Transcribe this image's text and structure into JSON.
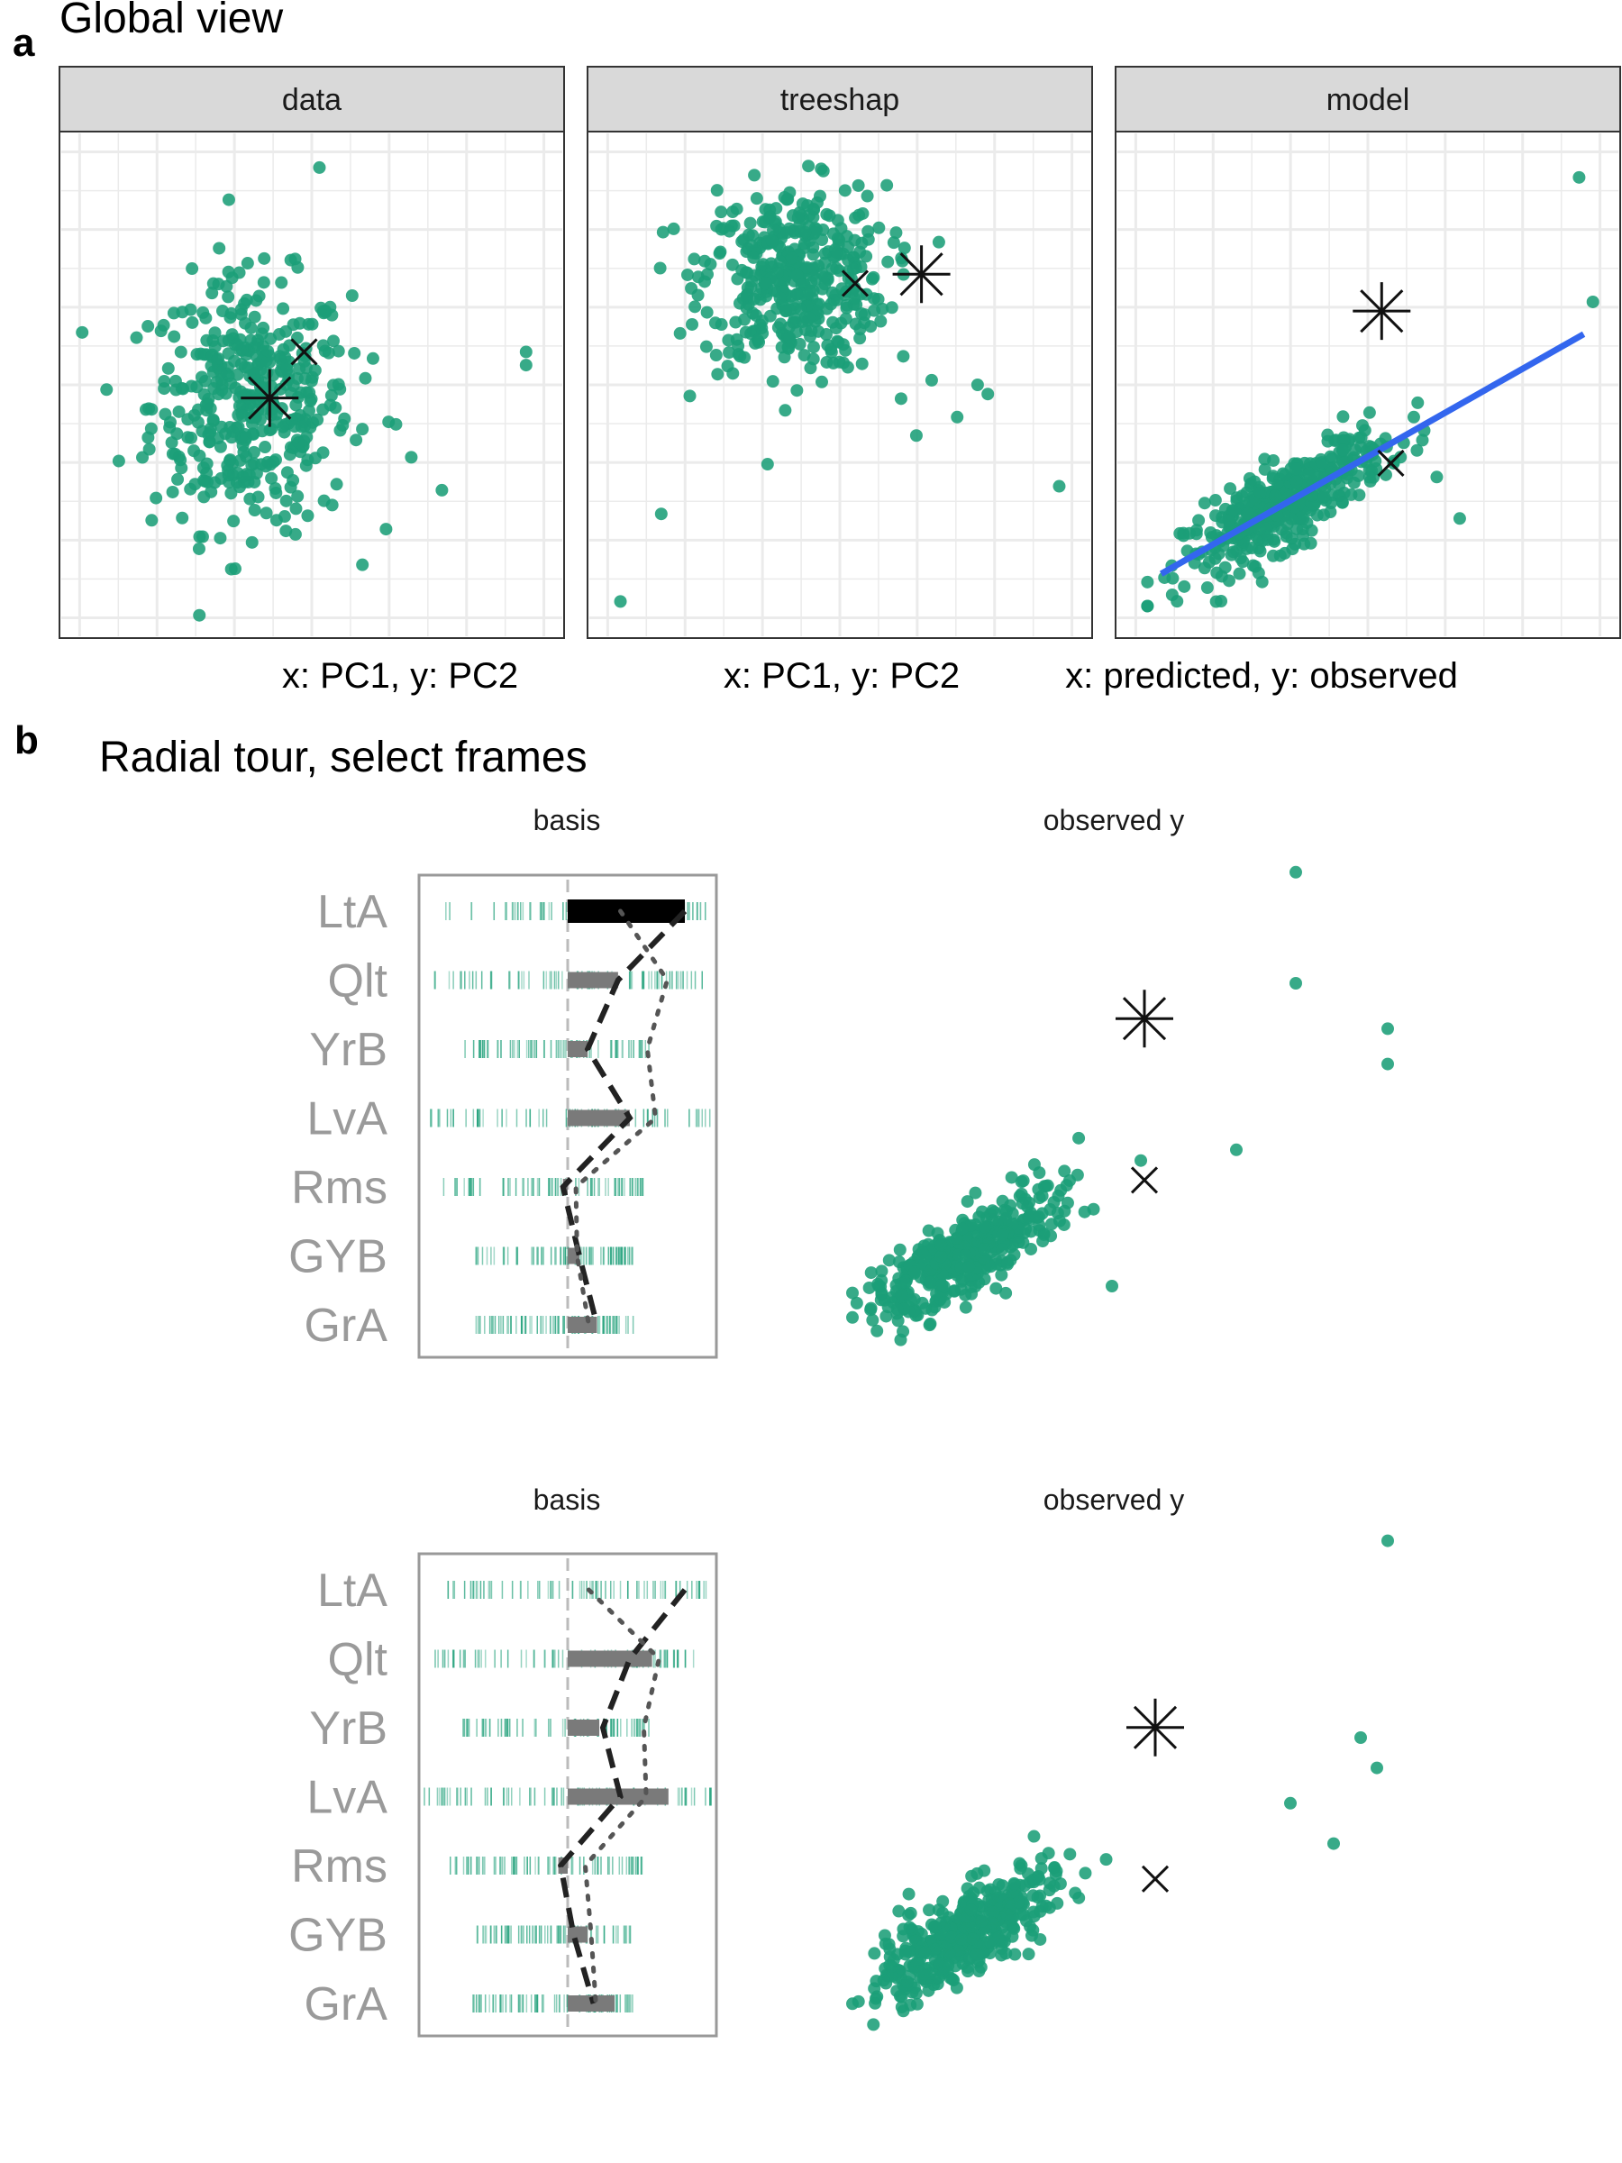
{
  "colors": {
    "point": "#1b9e77",
    "fit_line": "#3366ee",
    "marker": "#111111",
    "strip_bg": "#d9d9d9",
    "grid": "#ebebeb",
    "var_label": "#9a9a9a",
    "contrib_bar": "#7a7a7a",
    "contrib_bar_active": "#000000"
  },
  "figure": {
    "panel_a": {
      "label": "a",
      "title": "Global view",
      "facets": [
        {
          "strip": "data",
          "caption": "x: PC1, y: PC2",
          "x_range": [
            -4,
            8
          ],
          "y_range": [
            -3.2,
            3.8
          ]
        },
        {
          "strip": "treeshap",
          "caption": "x: PC1, y: PC2",
          "x_range": [
            -3,
            6
          ],
          "y_range": [
            -6,
            4
          ]
        },
        {
          "strip": "model",
          "caption": "x: predicted, y: observed",
          "x_range": [
            0,
            1
          ],
          "y_range": [
            0,
            1
          ]
        }
      ]
    },
    "panel_b": {
      "label": "b",
      "title": "Radial tour, select frames",
      "frames": [
        {
          "basis_title": "basis",
          "scatter_title": "observed y"
        },
        {
          "basis_title": "basis",
          "scatter_title": "observed y"
        }
      ],
      "variables": [
        "LtA",
        "Qlt",
        "YrB",
        "LvA",
        "Rms",
        "GYB",
        "GrA"
      ]
    }
  },
  "chart_data": [
    {
      "type": "scatter",
      "facet": "data",
      "x_range": [
        -4,
        8
      ],
      "y_range": [
        -3.2,
        3.8
      ],
      "grid": true,
      "n_points": 420,
      "center": [
        0.4,
        0.0
      ],
      "spread": [
        1.3,
        0.95
      ],
      "outliers": [
        [
          2.2,
          3.6
        ],
        [
          7.6,
          0.8
        ],
        [
          7.6,
          0.6
        ],
        [
          5.4,
          -1.3
        ],
        [
          4.6,
          -0.8
        ],
        [
          3.6,
          0.7
        ],
        [
          3.4,
          0.4
        ],
        [
          4.2,
          -0.3
        ]
      ],
      "highlight": {
        "x_mark": [
          1.8,
          0.8
        ],
        "star_mark": [
          0.9,
          0.1
        ]
      }
    },
    {
      "type": "scatter",
      "facet": "treeshap",
      "x_range": [
        -3,
        6
      ],
      "y_range": [
        -6,
        4
      ],
      "grid": true,
      "n_points": 420,
      "center": [
        0.6,
        1.3
      ],
      "spread": [
        0.9,
        1.0
      ],
      "outliers": [
        [
          -2.0,
          -3.8
        ],
        [
          -2.8,
          -5.7
        ],
        [
          5.8,
          -3.2
        ],
        [
          3.3,
          -0.9
        ],
        [
          4.2,
          -1.0
        ],
        [
          4.4,
          -1.2
        ],
        [
          3.8,
          -1.7
        ],
        [
          2.7,
          -1.3
        ],
        [
          3.0,
          -2.1
        ]
      ],
      "highlight": {
        "x_mark": [
          1.8,
          1.2
        ],
        "star_mark": [
          3.1,
          1.4
        ]
      }
    },
    {
      "type": "scatter",
      "facet": "model",
      "x_range": [
        0,
        1
      ],
      "y_range": [
        0,
        1
      ],
      "grid": true,
      "n_points": 420,
      "trend": {
        "slope": 0.95,
        "intercept": 0.0
      },
      "fit_line": {
        "x": [
          0.05,
          0.97
        ],
        "y": [
          0.09,
          0.61
        ]
      },
      "outliers": [
        [
          0.96,
          0.95
        ],
        [
          0.99,
          0.68
        ],
        [
          0.6,
          0.43
        ],
        [
          0.65,
          0.3
        ],
        [
          0.7,
          0.21
        ]
      ],
      "highlight": {
        "x_mark": [
          0.55,
          0.33
        ],
        "star_mark": [
          0.53,
          0.66
        ]
      }
    },
    {
      "type": "bar",
      "frame": 1,
      "panel": "basis",
      "variables": [
        "LtA",
        "Qlt",
        "YrB",
        "LvA",
        "Rms",
        "GYB",
        "GrA"
      ],
      "values": [
        1.0,
        0.43,
        0.17,
        0.53,
        -0.04,
        0.1,
        0.25
      ],
      "active_variable": "LtA",
      "x_range": [
        -1.25,
        1.25
      ],
      "overlays": {
        "dashed": [
          1.0,
          0.43,
          0.17,
          0.53,
          -0.04,
          0.1,
          0.25
        ],
        "dotted": [
          0.45,
          0.85,
          0.68,
          0.75,
          0.07,
          0.08,
          0.18
        ]
      },
      "rug": [
        {
          "min": -1.05,
          "max": 1.2
        },
        {
          "min": -1.15,
          "max": 1.2
        },
        {
          "min": -0.9,
          "max": 0.7
        },
        {
          "min": -1.25,
          "max": 1.25
        },
        {
          "min": -1.05,
          "max": 0.65
        },
        {
          "min": -0.8,
          "max": 0.55
        },
        {
          "min": -0.8,
          "max": 0.6
        }
      ]
    },
    {
      "type": "scatter",
      "frame": 1,
      "panel": "observed y",
      "x_range": [
        0,
        1
      ],
      "y_range": [
        0,
        1
      ],
      "grid": false,
      "n_points": 420,
      "outliers": [
        [
          0.83,
          0.97
        ],
        [
          0.83,
          0.75
        ],
        [
          1.0,
          0.66
        ],
        [
          1.0,
          0.59
        ],
        [
          0.72,
          0.42
        ],
        [
          0.49,
          0.15
        ]
      ],
      "highlight": {
        "x_mark": [
          0.55,
          0.36
        ],
        "star_mark": [
          0.55,
          0.68
        ]
      }
    },
    {
      "type": "bar",
      "frame": 2,
      "panel": "basis",
      "variables": [
        "LtA",
        "Qlt",
        "YrB",
        "LvA",
        "Rms",
        "GYB",
        "GrA"
      ],
      "values": [
        0.0,
        0.72,
        0.27,
        0.86,
        -0.08,
        0.17,
        0.4
      ],
      "active_variable": null,
      "x_range": [
        -1.25,
        1.25
      ],
      "overlays": {
        "dashed": [
          1.0,
          0.53,
          0.3,
          0.45,
          -0.06,
          0.05,
          0.22
        ],
        "dotted": [
          0.18,
          0.78,
          0.65,
          0.67,
          0.15,
          0.2,
          0.24
        ]
      },
      "rug": [
        {
          "min": -1.05,
          "max": 1.2
        },
        {
          "min": -1.15,
          "max": 1.2
        },
        {
          "min": -0.9,
          "max": 0.7
        },
        {
          "min": -1.25,
          "max": 1.25
        },
        {
          "min": -1.05,
          "max": 0.65
        },
        {
          "min": -0.8,
          "max": 0.55
        },
        {
          "min": -0.8,
          "max": 0.6
        }
      ]
    },
    {
      "type": "scatter",
      "frame": 2,
      "panel": "observed y",
      "x_range": [
        0,
        1
      ],
      "y_range": [
        0,
        1
      ],
      "grid": false,
      "n_points": 420,
      "outliers": [
        [
          1.0,
          0.99
        ],
        [
          0.95,
          0.6
        ],
        [
          0.98,
          0.54
        ],
        [
          0.9,
          0.39
        ],
        [
          0.82,
          0.47
        ]
      ],
      "highlight": {
        "x_mark": [
          0.57,
          0.32
        ],
        "star_mark": [
          0.57,
          0.62
        ]
      }
    }
  ]
}
